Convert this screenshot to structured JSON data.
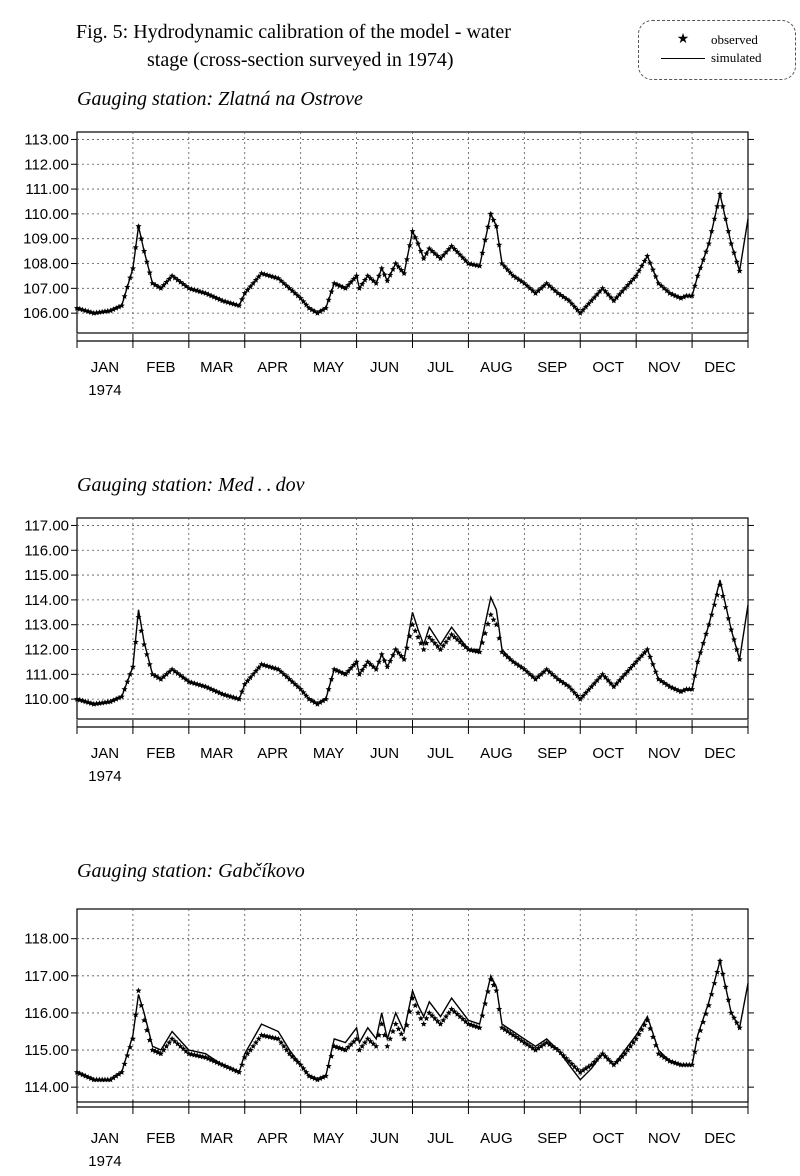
{
  "figure": {
    "title_line1": "Fig. 5: Hydrodynamic calibration of the model - water",
    "title_line2": "stage (cross-section surveyed in 1974)"
  },
  "legend": {
    "observed_label": "observed",
    "simulated_label": "simulated",
    "observed_symbol": "★"
  },
  "chart_data": [
    {
      "type": "line",
      "title": "Gauging station: Zlatná na Ostrove",
      "x_tick_labels": [
        "JAN",
        "FEB",
        "MAR",
        "APR",
        "MAY",
        "JUN",
        "JUL",
        "AUG",
        "SEP",
        "OCT",
        "NOV",
        "DEC"
      ],
      "year_label": "1974",
      "y_ticks": [
        "106.00",
        "107.00",
        "108.00",
        "109.00",
        "110.00",
        "111.00",
        "112.00",
        "113.00"
      ],
      "ylim": [
        105.2,
        113.3
      ],
      "x_unit": "month (1974, 0 = 1 Jan)",
      "grid": "dotted",
      "series": [
        {
          "name": "observed",
          "marker": "star",
          "x": [
            0,
            0.3,
            0.6,
            0.8,
            1.0,
            1.1,
            1.2,
            1.35,
            1.5,
            1.7,
            2.0,
            2.3,
            2.6,
            2.9,
            3.0,
            3.3,
            3.6,
            3.8,
            4.0,
            4.15,
            4.3,
            4.45,
            4.6,
            4.8,
            5.0,
            5.05,
            5.2,
            5.35,
            5.45,
            5.55,
            5.7,
            5.85,
            6.0,
            6.1,
            6.2,
            6.3,
            6.5,
            6.7,
            7.0,
            7.2,
            7.4,
            7.5,
            7.6,
            7.8,
            8.0,
            8.2,
            8.4,
            8.6,
            8.8,
            9.0,
            9.2,
            9.4,
            9.6,
            9.8,
            10.0,
            10.2,
            10.4,
            10.6,
            10.8,
            10.9,
            11.0,
            11.1,
            11.3,
            11.5,
            11.7,
            11.85
          ],
          "y": [
            106.2,
            106.0,
            106.1,
            106.3,
            107.8,
            109.5,
            108.5,
            107.2,
            107.0,
            107.5,
            107.0,
            106.8,
            106.5,
            106.3,
            106.8,
            107.6,
            107.4,
            107.0,
            106.6,
            106.2,
            106.0,
            106.2,
            107.2,
            107.0,
            107.5,
            107.0,
            107.5,
            107.2,
            107.8,
            107.3,
            108.0,
            107.6,
            109.3,
            108.8,
            108.2,
            108.6,
            108.2,
            108.7,
            108.0,
            107.9,
            110.0,
            109.5,
            108.0,
            107.5,
            107.2,
            106.8,
            107.2,
            106.8,
            106.5,
            106.0,
            106.5,
            107.0,
            106.5,
            107.0,
            107.5,
            108.3,
            107.2,
            106.8,
            106.6,
            106.7,
            106.7,
            107.5,
            108.8,
            110.8,
            108.8,
            107.7
          ]
        },
        {
          "name": "simulated",
          "x": [
            0,
            0.3,
            0.6,
            0.8,
            1.0,
            1.1,
            1.2,
            1.35,
            1.5,
            1.7,
            2.0,
            2.3,
            2.6,
            2.9,
            3.0,
            3.3,
            3.6,
            3.8,
            4.0,
            4.15,
            4.3,
            4.45,
            4.6,
            4.8,
            5.0,
            5.05,
            5.2,
            5.35,
            5.45,
            5.55,
            5.7,
            5.85,
            6.0,
            6.1,
            6.2,
            6.3,
            6.5,
            6.7,
            7.0,
            7.2,
            7.4,
            7.5,
            7.6,
            7.8,
            8.0,
            8.2,
            8.4,
            8.6,
            8.8,
            9.0,
            9.2,
            9.4,
            9.6,
            9.8,
            10.0,
            10.2,
            10.4,
            10.6,
            10.8,
            10.9,
            11.0,
            11.1,
            11.3,
            11.5,
            11.7,
            11.85,
            12.0
          ],
          "y": [
            106.2,
            106.0,
            106.1,
            106.3,
            107.8,
            109.5,
            108.5,
            107.2,
            107.0,
            107.5,
            107.0,
            106.8,
            106.5,
            106.3,
            106.8,
            107.6,
            107.4,
            107.0,
            106.6,
            106.2,
            106.0,
            106.2,
            107.2,
            107.0,
            107.5,
            107.0,
            107.5,
            107.2,
            107.8,
            107.3,
            108.0,
            107.6,
            109.3,
            108.8,
            108.2,
            108.6,
            108.2,
            108.7,
            108.0,
            107.9,
            110.0,
            109.5,
            108.0,
            107.5,
            107.2,
            106.8,
            107.2,
            106.8,
            106.5,
            106.0,
            106.5,
            107.0,
            106.5,
            107.0,
            107.5,
            108.3,
            107.2,
            106.8,
            106.6,
            106.7,
            106.7,
            107.5,
            108.8,
            110.8,
            108.8,
            107.7,
            109.8
          ]
        }
      ]
    },
    {
      "type": "line",
      "title": "Gauging station: Med . . dov",
      "x_tick_labels": [
        "JAN",
        "FEB",
        "MAR",
        "APR",
        "MAY",
        "JUN",
        "JUL",
        "AUG",
        "SEP",
        "OCT",
        "NOV",
        "DEC"
      ],
      "year_label": "1974",
      "y_ticks": [
        "110.00",
        "111.00",
        "112.00",
        "113.00",
        "114.00",
        "115.00",
        "116.00",
        "117.00"
      ],
      "ylim": [
        109.2,
        117.3
      ],
      "x_unit": "month (1974, 0 = 1 Jan)",
      "grid": "dotted",
      "series": [
        {
          "name": "observed",
          "marker": "star",
          "x": [
            0,
            0.3,
            0.6,
            0.8,
            1.0,
            1.1,
            1.2,
            1.35,
            1.5,
            1.7,
            2.0,
            2.3,
            2.6,
            2.9,
            3.0,
            3.3,
            3.6,
            3.8,
            4.0,
            4.15,
            4.3,
            4.45,
            4.6,
            4.8,
            5.0,
            5.05,
            5.2,
            5.35,
            5.45,
            5.55,
            5.7,
            5.85,
            6.0,
            6.1,
            6.2,
            6.3,
            6.5,
            6.7,
            7.0,
            7.2,
            7.4,
            7.5,
            7.6,
            7.8,
            8.0,
            8.2,
            8.4,
            8.6,
            8.8,
            9.0,
            9.2,
            9.4,
            9.6,
            9.8,
            10.0,
            10.2,
            10.4,
            10.6,
            10.8,
            10.9,
            11.0,
            11.1,
            11.3,
            11.5,
            11.7,
            11.85
          ],
          "y": [
            110.0,
            109.8,
            109.9,
            110.1,
            111.3,
            113.3,
            112.2,
            111.0,
            110.8,
            111.2,
            110.7,
            110.5,
            110.2,
            110.0,
            110.6,
            111.4,
            111.2,
            110.8,
            110.4,
            110.0,
            109.8,
            110.0,
            111.2,
            111.0,
            111.5,
            111.0,
            111.5,
            111.2,
            111.8,
            111.3,
            112.0,
            111.6,
            113.0,
            112.5,
            112.0,
            112.5,
            112.0,
            112.6,
            112.0,
            111.9,
            113.4,
            113.0,
            111.9,
            111.5,
            111.2,
            110.8,
            111.2,
            110.8,
            110.5,
            110.0,
            110.5,
            111.0,
            110.5,
            111.0,
            111.5,
            112.0,
            110.8,
            110.5,
            110.3,
            110.4,
            110.4,
            111.5,
            113.0,
            114.6,
            112.8,
            111.6
          ]
        },
        {
          "name": "simulated",
          "x": [
            0,
            0.3,
            0.6,
            0.8,
            1.0,
            1.1,
            1.2,
            1.35,
            1.5,
            1.7,
            2.0,
            2.3,
            2.6,
            2.9,
            3.0,
            3.3,
            3.6,
            3.8,
            4.0,
            4.15,
            4.3,
            4.45,
            4.6,
            4.8,
            5.0,
            5.05,
            5.2,
            5.35,
            5.45,
            5.55,
            5.7,
            5.85,
            6.0,
            6.1,
            6.2,
            6.3,
            6.5,
            6.7,
            7.0,
            7.2,
            7.4,
            7.5,
            7.6,
            7.8,
            8.0,
            8.2,
            8.4,
            8.6,
            8.8,
            9.0,
            9.2,
            9.4,
            9.6,
            9.8,
            10.0,
            10.2,
            10.4,
            10.6,
            10.8,
            10.9,
            11.0,
            11.1,
            11.3,
            11.5,
            11.7,
            11.85,
            12.0
          ],
          "y": [
            110.0,
            109.8,
            109.9,
            110.1,
            111.3,
            113.6,
            112.3,
            111.0,
            110.8,
            111.2,
            110.7,
            110.5,
            110.2,
            110.0,
            110.6,
            111.4,
            111.2,
            110.8,
            110.4,
            110.0,
            109.8,
            110.0,
            111.2,
            111.0,
            111.5,
            111.0,
            111.5,
            111.2,
            111.8,
            111.3,
            112.0,
            111.6,
            113.5,
            112.8,
            112.2,
            112.9,
            112.2,
            112.9,
            112.0,
            112.0,
            114.1,
            113.6,
            112.0,
            111.5,
            111.2,
            110.8,
            111.2,
            110.8,
            110.5,
            110.0,
            110.5,
            111.0,
            110.5,
            111.0,
            111.5,
            112.0,
            110.8,
            110.5,
            110.3,
            110.4,
            110.4,
            111.5,
            113.0,
            114.8,
            112.8,
            111.6,
            113.8
          ]
        }
      ]
    },
    {
      "type": "line",
      "title": "Gauging station: Gabčíkovo",
      "x_tick_labels": [
        "JAN",
        "FEB",
        "MAR",
        "APR",
        "MAY",
        "JUN",
        "JUL",
        "AUG",
        "SEP",
        "OCT",
        "NOV",
        "DEC"
      ],
      "year_label": "1974",
      "y_ticks": [
        "114.00",
        "115.00",
        "116.00",
        "117.00",
        "118.00"
      ],
      "ylim": [
        113.6,
        118.8
      ],
      "x_unit": "month (1974, 0 = 1 Jan)",
      "grid": "dotted",
      "series": [
        {
          "name": "observed",
          "marker": "star",
          "x": [
            0,
            0.3,
            0.6,
            0.8,
            1.0,
            1.1,
            1.2,
            1.35,
            1.5,
            1.7,
            2.0,
            2.3,
            2.6,
            2.9,
            3.0,
            3.3,
            3.6,
            3.8,
            4.0,
            4.15,
            4.3,
            4.45,
            4.6,
            4.8,
            5.0,
            5.05,
            5.2,
            5.35,
            5.45,
            5.55,
            5.7,
            5.85,
            6.0,
            6.1,
            6.2,
            6.3,
            6.5,
            6.7,
            7.0,
            7.2,
            7.4,
            7.5,
            7.6,
            7.8,
            8.0,
            8.2,
            8.4,
            8.6,
            8.8,
            9.0,
            9.2,
            9.4,
            9.6,
            9.8,
            10.0,
            10.2,
            10.4,
            10.6,
            10.8,
            10.9,
            11.0,
            11.1,
            11.3,
            11.5,
            11.7,
            11.85
          ],
          "y": [
            114.4,
            114.2,
            114.2,
            114.4,
            115.3,
            116.6,
            115.8,
            115.0,
            114.9,
            115.3,
            114.9,
            114.8,
            114.6,
            114.4,
            114.8,
            115.4,
            115.3,
            114.9,
            114.6,
            114.3,
            114.2,
            114.3,
            115.1,
            115.0,
            115.3,
            115.0,
            115.3,
            115.1,
            115.7,
            115.1,
            115.7,
            115.3,
            116.4,
            116.0,
            115.7,
            116.0,
            115.7,
            116.1,
            115.7,
            115.6,
            116.9,
            116.6,
            115.6,
            115.4,
            115.2,
            115.0,
            115.2,
            115.0,
            114.7,
            114.4,
            114.6,
            114.9,
            114.6,
            114.9,
            115.3,
            115.8,
            114.9,
            114.7,
            114.6,
            114.6,
            114.6,
            115.3,
            116.2,
            117.4,
            116.0,
            115.6
          ]
        },
        {
          "name": "simulated",
          "x": [
            0,
            0.3,
            0.6,
            0.8,
            1.0,
            1.1,
            1.2,
            1.35,
            1.5,
            1.7,
            2.0,
            2.3,
            2.6,
            2.9,
            3.0,
            3.3,
            3.6,
            3.8,
            4.0,
            4.15,
            4.3,
            4.45,
            4.6,
            4.8,
            5.0,
            5.05,
            5.2,
            5.35,
            5.45,
            5.55,
            5.7,
            5.85,
            6.0,
            6.1,
            6.2,
            6.3,
            6.5,
            6.7,
            7.0,
            7.2,
            7.4,
            7.5,
            7.6,
            7.8,
            8.0,
            8.2,
            8.4,
            8.6,
            8.8,
            9.0,
            9.2,
            9.4,
            9.6,
            9.8,
            10.0,
            10.2,
            10.4,
            10.6,
            10.8,
            10.9,
            11.0,
            11.1,
            11.3,
            11.5,
            11.7,
            11.85,
            12.0
          ],
          "y": [
            114.4,
            114.2,
            114.2,
            114.4,
            115.4,
            116.5,
            116.0,
            115.1,
            115.0,
            115.5,
            115.0,
            114.9,
            114.6,
            114.4,
            114.9,
            115.7,
            115.5,
            115.0,
            114.6,
            114.3,
            114.2,
            114.3,
            115.3,
            115.2,
            115.6,
            115.2,
            115.6,
            115.3,
            116.0,
            115.3,
            116.0,
            115.5,
            116.6,
            116.2,
            115.9,
            116.3,
            115.9,
            116.4,
            115.8,
            115.7,
            117.0,
            116.7,
            115.7,
            115.5,
            115.3,
            115.1,
            115.3,
            115.0,
            114.6,
            114.2,
            114.5,
            114.9,
            114.6,
            115.0,
            115.4,
            115.9,
            115.0,
            114.7,
            114.6,
            114.6,
            114.6,
            115.4,
            116.3,
            117.4,
            116.0,
            115.6,
            116.8
          ]
        }
      ]
    }
  ]
}
